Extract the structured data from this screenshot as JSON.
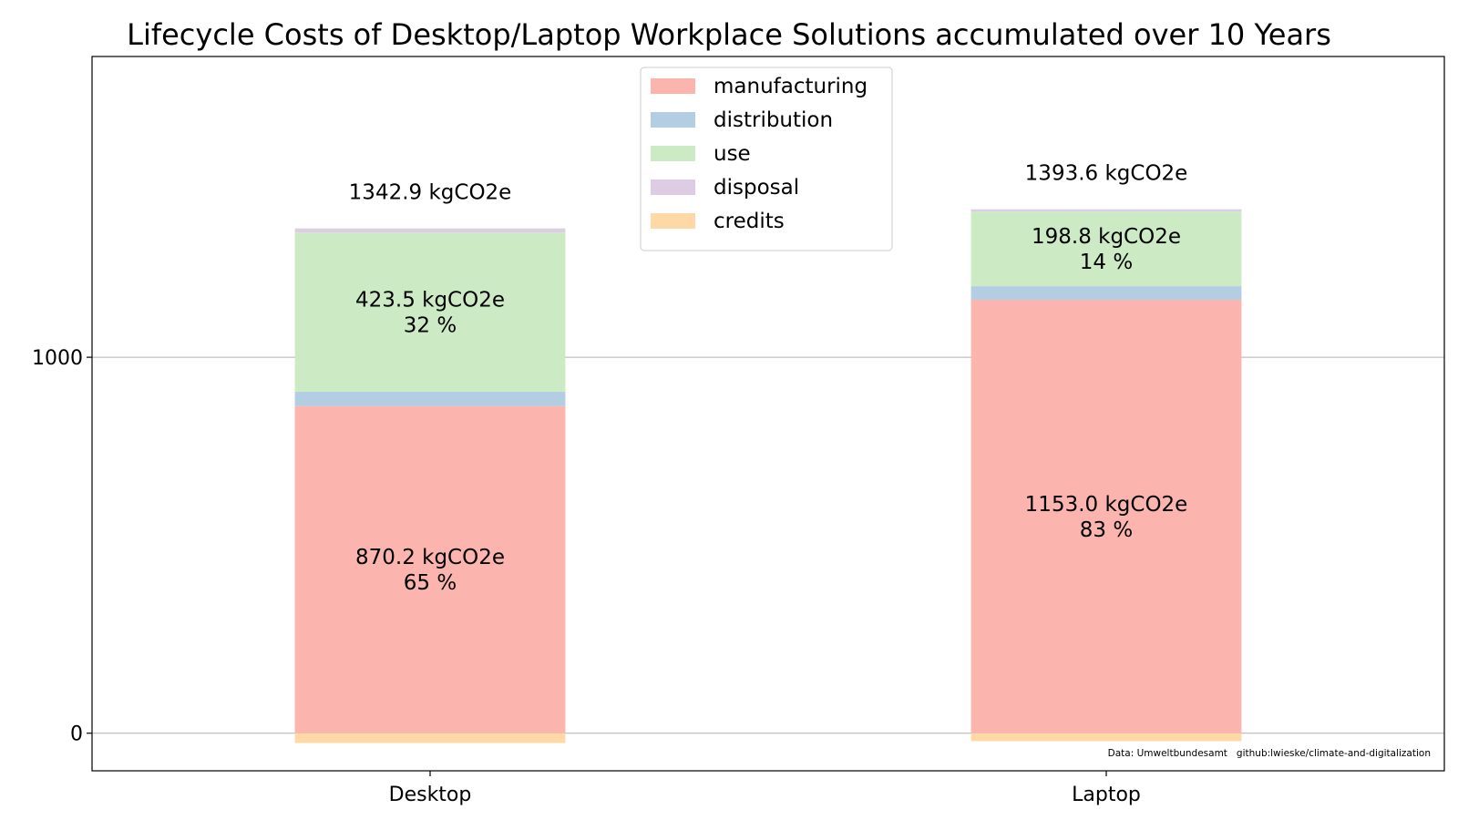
{
  "chart_data": {
    "type": "bar",
    "stacked": true,
    "title": "Lifecycle Costs of Desktop/Laptop Workplace Solutions accumulated over 10 Years",
    "xlabel": "",
    "ylabel": "",
    "categories": [
      "Desktop",
      "Laptop"
    ],
    "ylim": [
      -100,
      1800
    ],
    "yticks": [
      0,
      1000
    ],
    "grid": "y",
    "legend_position": "top-center",
    "series": [
      {
        "name": "manufacturing",
        "color": "#fbb4ae",
        "values": [
          870.2,
          1153.0
        ]
      },
      {
        "name": "distribution",
        "color": "#b3cde3",
        "values": [
          38,
          36
        ]
      },
      {
        "name": "use",
        "color": "#ccebc5",
        "values": [
          423.5,
          198.8
        ]
      },
      {
        "name": "disposal",
        "color": "#decbe4",
        "values": [
          11,
          5.8
        ]
      },
      {
        "name": "credits",
        "color": "#fed9a6",
        "values": [
          -26,
          -21
        ]
      }
    ],
    "segment_labels": [
      {
        "category": "Desktop",
        "series": "manufacturing",
        "value_text": "870.2 kgCO2e",
        "percent_text": "65 %"
      },
      {
        "category": "Desktop",
        "series": "use",
        "value_text": "423.5 kgCO2e",
        "percent_text": "32 %"
      },
      {
        "category": "Laptop",
        "series": "manufacturing",
        "value_text": "1153.0 kgCO2e",
        "percent_text": "83 %"
      },
      {
        "category": "Laptop",
        "series": "use",
        "value_text": "198.8 kgCO2e",
        "percent_text": "14 %"
      }
    ],
    "totals": [
      {
        "category": "Desktop",
        "text": "1342.9 kgCO2e"
      },
      {
        "category": "Laptop",
        "text": "1393.6 kgCO2e"
      }
    ],
    "source_note": "Data: Umweltbundesamt   github:lwieske/climate-and-digitalization"
  }
}
